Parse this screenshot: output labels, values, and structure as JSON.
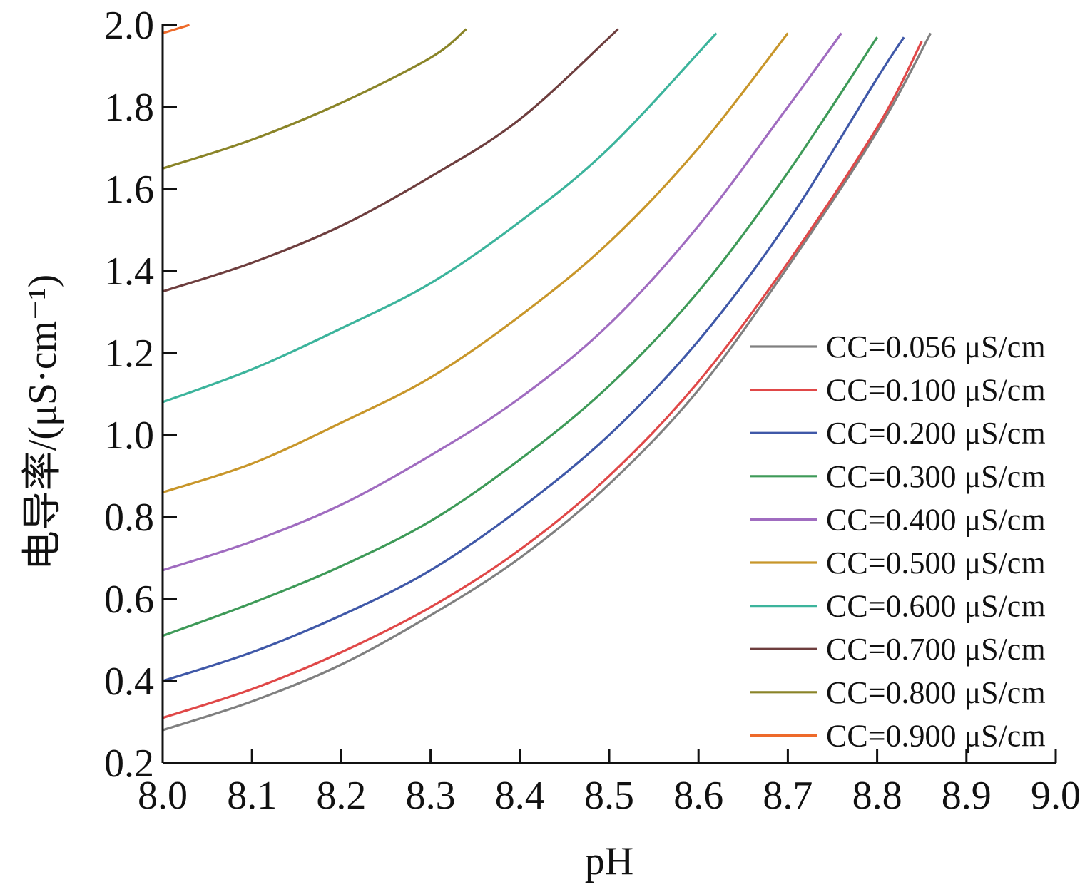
{
  "chart_data": {
    "type": "line",
    "title": "",
    "xlabel": "pH",
    "ylabel": "电导率/(μS·cm⁻¹)",
    "xlim": [
      8.0,
      9.0
    ],
    "ylim": [
      0.2,
      2.0
    ],
    "xticks": [
      "8.0",
      "8.1",
      "8.2",
      "8.3",
      "8.4",
      "8.5",
      "8.6",
      "8.7",
      "8.8",
      "8.9",
      "9.0"
    ],
    "yticks": [
      "0.2",
      "0.4",
      "0.6",
      "0.8",
      "1.0",
      "1.2",
      "1.4",
      "1.6",
      "1.8",
      "2.0"
    ],
    "grid": false,
    "legend_position": "bottom-right",
    "series": [
      {
        "name": "CC=0.056 μS/cm",
        "color": "#808080",
        "x": [
          8.0,
          8.1,
          8.2,
          8.3,
          8.4,
          8.5,
          8.6,
          8.7,
          8.8,
          8.86
        ],
        "y": [
          0.28,
          0.35,
          0.44,
          0.56,
          0.7,
          0.88,
          1.11,
          1.41,
          1.74,
          1.98
        ]
      },
      {
        "name": "CC=0.100 μS/cm",
        "color": "#e04848",
        "x": [
          8.0,
          8.1,
          8.2,
          8.3,
          8.4,
          8.5,
          8.6,
          8.7,
          8.8,
          8.85
        ],
        "y": [
          0.31,
          0.38,
          0.47,
          0.58,
          0.72,
          0.9,
          1.13,
          1.42,
          1.75,
          1.96
        ]
      },
      {
        "name": "CC=0.200 μS/cm",
        "color": "#3f58a8",
        "x": [
          8.0,
          8.1,
          8.2,
          8.3,
          8.4,
          8.5,
          8.6,
          8.7,
          8.8,
          8.83
        ],
        "y": [
          0.4,
          0.47,
          0.56,
          0.67,
          0.82,
          1.0,
          1.23,
          1.52,
          1.87,
          1.97
        ]
      },
      {
        "name": "CC=0.300 μS/cm",
        "color": "#3e9a58",
        "x": [
          8.0,
          8.1,
          8.2,
          8.3,
          8.4,
          8.5,
          8.6,
          8.7,
          8.8
        ],
        "y": [
          0.51,
          0.59,
          0.68,
          0.79,
          0.94,
          1.12,
          1.35,
          1.64,
          1.97
        ]
      },
      {
        "name": "CC=0.400 μS/cm",
        "color": "#a06cc0",
        "x": [
          8.0,
          8.1,
          8.2,
          8.3,
          8.4,
          8.5,
          8.6,
          8.7,
          8.76
        ],
        "y": [
          0.67,
          0.74,
          0.83,
          0.95,
          1.09,
          1.27,
          1.51,
          1.8,
          1.98
        ]
      },
      {
        "name": "CC=0.500 μS/cm",
        "color": "#c8962a",
        "x": [
          8.0,
          8.1,
          8.2,
          8.3,
          8.4,
          8.5,
          8.6,
          8.7
        ],
        "y": [
          0.86,
          0.93,
          1.03,
          1.14,
          1.29,
          1.47,
          1.7,
          1.98
        ]
      },
      {
        "name": "CC=0.600 μS/cm",
        "color": "#3cb49c",
        "x": [
          8.0,
          8.1,
          8.2,
          8.3,
          8.4,
          8.5,
          8.62
        ],
        "y": [
          1.08,
          1.16,
          1.26,
          1.37,
          1.52,
          1.7,
          1.98
        ]
      },
      {
        "name": "CC=0.700 μS/cm",
        "color": "#6e3e3e",
        "x": [
          8.0,
          8.1,
          8.2,
          8.3,
          8.4,
          8.51
        ],
        "y": [
          1.35,
          1.42,
          1.51,
          1.63,
          1.77,
          1.99
        ]
      },
      {
        "name": "CC=0.800 μS/cm",
        "color": "#8a8428",
        "x": [
          8.0,
          8.1,
          8.2,
          8.3,
          8.34
        ],
        "y": [
          1.65,
          1.72,
          1.81,
          1.92,
          1.99
        ]
      },
      {
        "name": "CC=0.900 μS/cm",
        "color": "#ee6a2a",
        "x": [
          8.0,
          8.03
        ],
        "y": [
          1.98,
          2.0
        ]
      }
    ]
  }
}
